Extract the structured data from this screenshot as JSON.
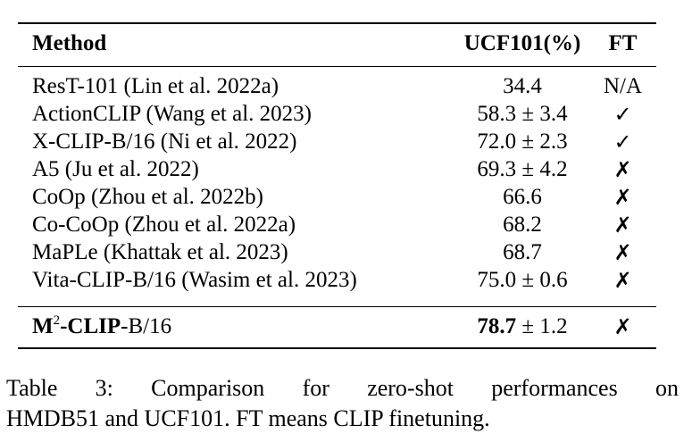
{
  "table": {
    "headers": {
      "method": "Method",
      "ucf": "UCF101(%)",
      "ft": "FT"
    },
    "rows": [
      {
        "method": "ResT-101 (Lin et al. 2022a)",
        "ucf": "34.4",
        "ft": "N/A"
      },
      {
        "method": "ActionCLIP (Wang et al. 2023)",
        "ucf": "58.3 ± 3.4",
        "ft": "✓"
      },
      {
        "method": "X-CLIP-B/16 (Ni et al. 2022)",
        "ucf": "72.0 ± 2.3",
        "ft": "✓"
      },
      {
        "method": "A5 (Ju et al. 2022)",
        "ucf": "69.3 ± 4.2",
        "ft": "✗"
      },
      {
        "method": "CoOp (Zhou et al. 2022b)",
        "ucf": "66.6",
        "ft": "✗"
      },
      {
        "method": "Co-CoOp (Zhou et al. 2022a)",
        "ucf": "68.2",
        "ft": "✗"
      },
      {
        "method": "MaPLe (Khattak et al. 2023)",
        "ucf": "68.7",
        "ft": "✗"
      },
      {
        "method": "Vita-CLIP-B/16 (Wasim et al. 2023)",
        "ucf": "75.0 ± 0.6",
        "ft": "✗"
      }
    ],
    "ours": {
      "method_bold_prefix": "M",
      "method_sup": "2",
      "method_bold_mid": "-CLIP",
      "method_rest": "-B/16",
      "ucf_bold": "78.7",
      "ucf_rest": " ± 1.2",
      "ft": "✗"
    }
  },
  "caption": {
    "line1": "Table 3: Comparison for zero-shot performances on",
    "line2": "HMDB51 and UCF101. FT means CLIP finetuning."
  }
}
